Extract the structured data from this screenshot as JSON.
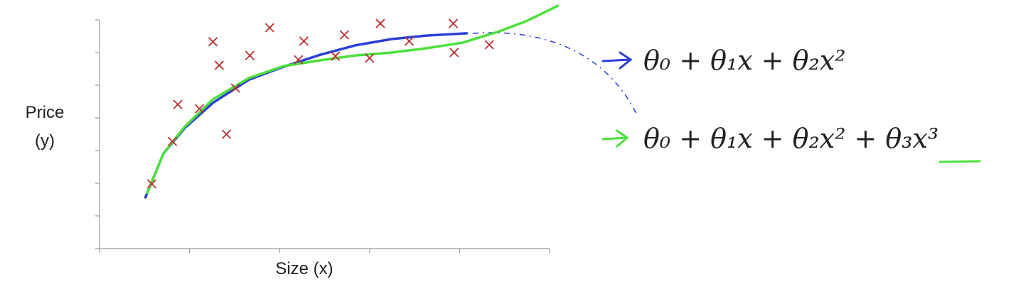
{
  "chart_data": {
    "type": "scatter",
    "ylabel": [
      "Price",
      "(y)"
    ],
    "xlabel": "Size (x)",
    "x": [
      0.58,
      0.81,
      0.87,
      1.11,
      1.26,
      1.33,
      1.41,
      1.51,
      1.67,
      1.89,
      2.21,
      2.27,
      2.62,
      2.72,
      3.0,
      3.12,
      3.44,
      3.93,
      3.94,
      4.33
    ],
    "values": [
      1.98,
      3.28,
      4.41,
      4.28,
      6.33,
      5.61,
      3.5,
      4.91,
      5.91,
      6.76,
      5.78,
      6.35,
      5.89,
      6.54,
      5.83,
      6.89,
      6.35,
      6.89,
      6.0,
      6.24
    ],
    "color": "#b8312f",
    "xlim": [
      0,
      5
    ],
    "xticks": [
      0,
      1,
      2,
      3,
      4,
      5
    ],
    "ylim": [
      0,
      7
    ],
    "yticks": [
      0,
      1,
      2,
      3,
      4,
      5,
      6,
      7
    ],
    "curves": [
      {
        "color": "#2b3fd6",
        "x": [
          0.51,
          0.71,
          0.95,
          1.26,
          1.66,
          2.05,
          2.45,
          2.84,
          3.24,
          3.63,
          4.08
        ],
        "y": [
          1.57,
          2.91,
          3.7,
          4.46,
          5.17,
          5.57,
          5.93,
          6.22,
          6.41,
          6.52,
          6.59
        ]
      },
      {
        "color": "#4be03a",
        "x": [
          0.53,
          0.71,
          0.95,
          1.26,
          1.66,
          2.05,
          2.45,
          2.84,
          3.24,
          3.63,
          4.03,
          4.42,
          4.74,
          5.09
        ],
        "y": [
          1.7,
          2.91,
          3.74,
          4.57,
          5.22,
          5.59,
          5.76,
          5.91,
          6.0,
          6.13,
          6.3,
          6.63,
          6.96,
          7.43
        ]
      }
    ],
    "annotations": [
      "θ₀ + θ₁x + θ₂x²",
      "θ₀ + θ₁x + θ₂x² + θ₃x³"
    ]
  }
}
